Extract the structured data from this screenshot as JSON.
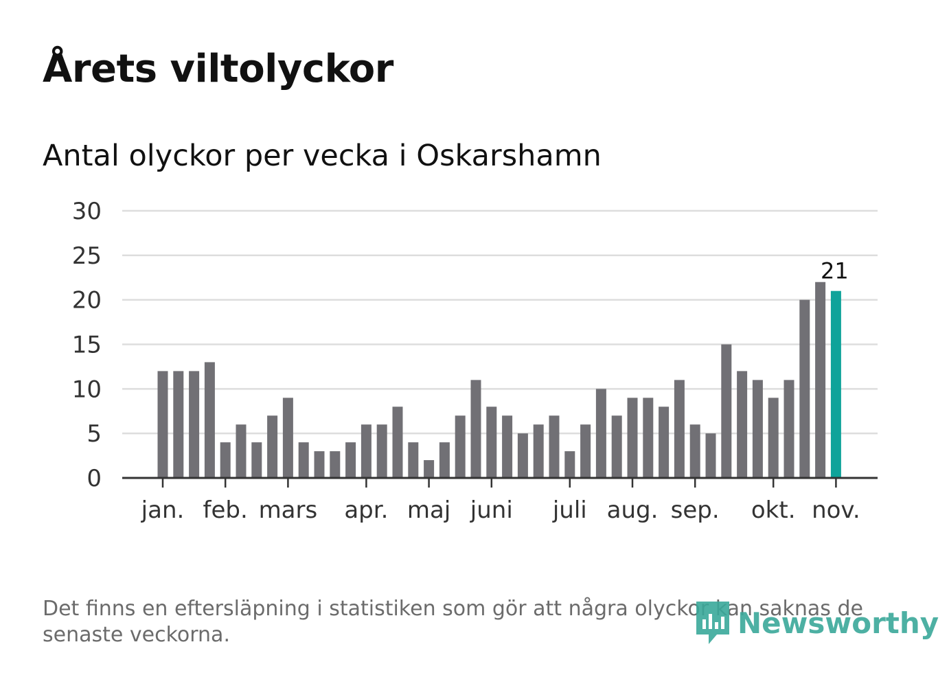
{
  "header": {
    "title": "Årets viltolyckor",
    "subtitle": "Antal olyckor per vecka i Oskarshamn"
  },
  "footer": {
    "note": "Det finns en eftersläpning i statistiken som gör att några olyckor kan saknas de senaste veckorna.",
    "brand": "Newsworthy"
  },
  "colors": {
    "bar": "#717075",
    "highlight": "#0fa39a",
    "grid": "#dddddd",
    "axis": "#333333",
    "brand": "#3aa89a"
  },
  "chart_data": {
    "type": "bar",
    "title": "Antal olyckor per vecka i Oskarshamn",
    "xlabel": "",
    "ylabel": "",
    "ylim": [
      0,
      30
    ],
    "yticks": [
      0,
      5,
      10,
      15,
      20,
      25,
      30
    ],
    "grid": true,
    "values": [
      12,
      12,
      12,
      13,
      4,
      6,
      4,
      7,
      9,
      4,
      3,
      3,
      4,
      6,
      6,
      8,
      4,
      2,
      4,
      7,
      11,
      8,
      7,
      5,
      6,
      7,
      3,
      6,
      10,
      7,
      9,
      9,
      8,
      11,
      6,
      5,
      15,
      12,
      11,
      9,
      11,
      20,
      22,
      21
    ],
    "highlight_index": 43,
    "highlight_label": "21",
    "months": [
      {
        "label": "jan.",
        "week": 0
      },
      {
        "label": "feb.",
        "week": 4
      },
      {
        "label": "mars",
        "week": 8
      },
      {
        "label": "apr.",
        "week": 13
      },
      {
        "label": "maj",
        "week": 17
      },
      {
        "label": "juni",
        "week": 21
      },
      {
        "label": "juli",
        "week": 26
      },
      {
        "label": "aug.",
        "week": 30
      },
      {
        "label": "sep.",
        "week": 34
      },
      {
        "label": "okt.",
        "week": 39
      },
      {
        "label": "nov.",
        "week": 43
      }
    ]
  }
}
